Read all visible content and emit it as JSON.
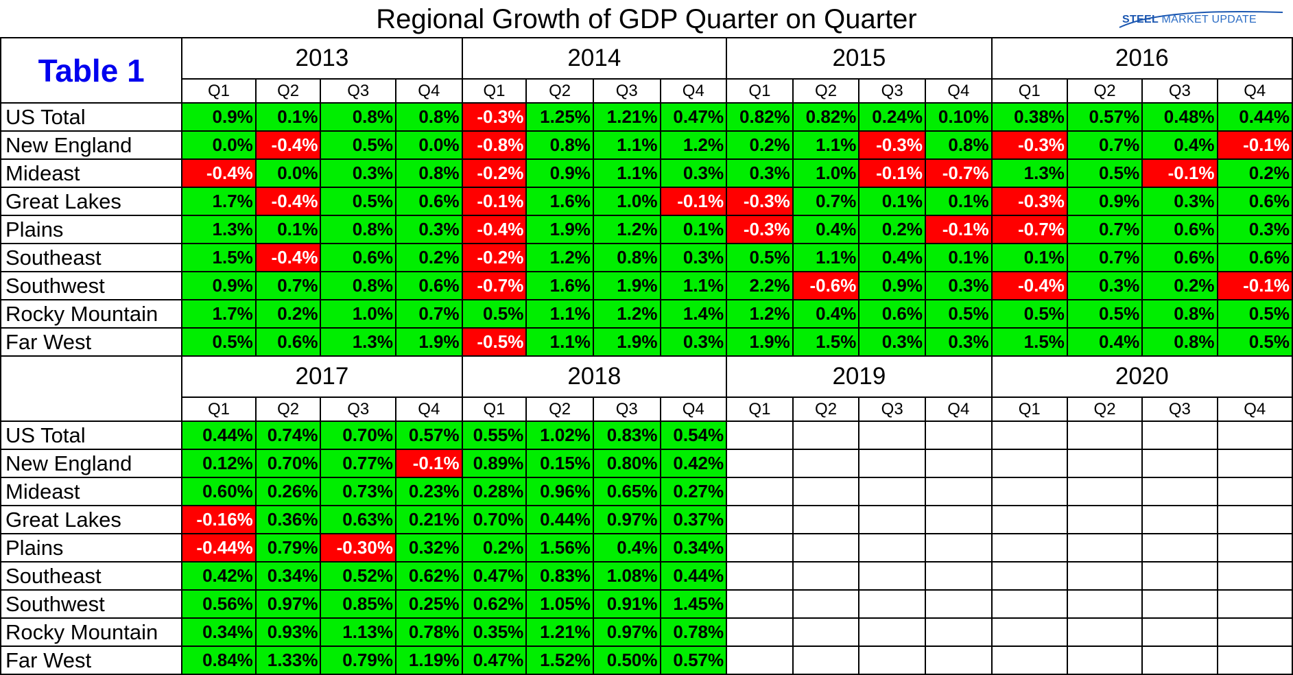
{
  "title": "Regional Growth of GDP Quarter on Quarter",
  "logo": {
    "word1": "STEEL",
    "word2": "MARKET UPDATE"
  },
  "table_label": "Table 1",
  "colors": {
    "positive": "#00ee00",
    "negative": "#ff0000",
    "table_label": "#0000ee",
    "logo": "#1a56b0"
  },
  "regions": [
    "US Total",
    "New England",
    "Mideast",
    "Great Lakes",
    "Plains",
    "Southeast",
    "Southwest",
    "Rocky Mountain",
    "Far West"
  ],
  "quarters": [
    "Q1",
    "Q2",
    "Q3",
    "Q4"
  ],
  "chart_data": {
    "type": "table",
    "title": "Regional Growth of GDP Quarter on Quarter",
    "blocks": [
      {
        "years": [
          "2013",
          "2014",
          "2015",
          "2016"
        ],
        "rows": [
          [
            "0.9%",
            "0.1%",
            "0.8%",
            "0.8%",
            "-0.3%",
            "1.25%",
            "1.21%",
            "0.47%",
            "0.82%",
            "0.82%",
            "0.24%",
            "0.10%",
            "0.38%",
            "0.57%",
            "0.48%",
            "0.44%"
          ],
          [
            "0.0%",
            "-0.4%",
            "0.5%",
            "0.0%",
            "-0.8%",
            "0.8%",
            "1.1%",
            "1.2%",
            "0.2%",
            "1.1%",
            "-0.3%",
            "0.8%",
            "-0.3%",
            "0.7%",
            "0.4%",
            "-0.1%"
          ],
          [
            "-0.4%",
            "0.0%",
            "0.3%",
            "0.8%",
            "-0.2%",
            "0.9%",
            "1.1%",
            "0.3%",
            "0.3%",
            "1.0%",
            "-0.1%",
            "-0.7%",
            "1.3%",
            "0.5%",
            "-0.1%",
            "0.2%"
          ],
          [
            "1.7%",
            "-0.4%",
            "0.5%",
            "0.6%",
            "-0.1%",
            "1.6%",
            "1.0%",
            "-0.1%",
            "-0.3%",
            "0.7%",
            "0.1%",
            "0.1%",
            "-0.3%",
            "0.9%",
            "0.3%",
            "0.6%"
          ],
          [
            "1.3%",
            "0.1%",
            "0.8%",
            "0.3%",
            "-0.4%",
            "1.9%",
            "1.2%",
            "0.1%",
            "-0.3%",
            "0.4%",
            "0.2%",
            "-0.1%",
            "-0.7%",
            "0.7%",
            "0.6%",
            "0.3%"
          ],
          [
            "1.5%",
            "-0.4%",
            "0.6%",
            "0.2%",
            "-0.2%",
            "1.2%",
            "0.8%",
            "0.3%",
            "0.5%",
            "1.1%",
            "0.4%",
            "0.1%",
            "0.1%",
            "0.7%",
            "0.6%",
            "0.6%"
          ],
          [
            "0.9%",
            "0.7%",
            "0.8%",
            "0.6%",
            "-0.7%",
            "1.6%",
            "1.9%",
            "1.1%",
            "2.2%",
            "-0.6%",
            "0.9%",
            "0.3%",
            "-0.4%",
            "0.3%",
            "0.2%",
            "-0.1%"
          ],
          [
            "1.7%",
            "0.2%",
            "1.0%",
            "0.7%",
            "0.5%",
            "1.1%",
            "1.2%",
            "1.4%",
            "1.2%",
            "0.4%",
            "0.6%",
            "0.5%",
            "0.5%",
            "0.5%",
            "0.8%",
            "0.5%"
          ],
          [
            "0.5%",
            "0.6%",
            "1.3%",
            "1.9%",
            "-0.5%",
            "1.1%",
            "1.9%",
            "0.3%",
            "1.9%",
            "1.5%",
            "0.3%",
            "0.3%",
            "1.5%",
            "0.4%",
            "0.8%",
            "0.5%"
          ]
        ]
      },
      {
        "years": [
          "2017",
          "2018",
          "2019",
          "2020"
        ],
        "rows": [
          [
            "0.44%",
            "0.74%",
            "0.70%",
            "0.57%",
            "0.55%",
            "1.02%",
            "0.83%",
            "0.54%"
          ],
          [
            "0.12%",
            "0.70%",
            "0.77%",
            "-0.1%",
            "0.89%",
            "0.15%",
            "0.80%",
            "0.42%"
          ],
          [
            "0.60%",
            "0.26%",
            "0.73%",
            "0.23%",
            "0.28%",
            "0.96%",
            "0.65%",
            "0.27%"
          ],
          [
            "-0.16%",
            "0.36%",
            "0.63%",
            "0.21%",
            "0.70%",
            "0.44%",
            "0.97%",
            "0.37%"
          ],
          [
            "-0.44%",
            "0.79%",
            "-0.30%",
            "0.32%",
            "0.2%",
            "1.56%",
            "0.4%",
            "0.34%"
          ],
          [
            "0.42%",
            "0.34%",
            "0.52%",
            "0.62%",
            "0.47%",
            "0.83%",
            "1.08%",
            "0.44%"
          ],
          [
            "0.56%",
            "0.97%",
            "0.85%",
            "0.25%",
            "0.62%",
            "1.05%",
            "0.91%",
            "1.45%"
          ],
          [
            "0.34%",
            "0.93%",
            "1.13%",
            "0.78%",
            "0.35%",
            "1.21%",
            "0.97%",
            "0.78%"
          ],
          [
            "0.84%",
            "1.33%",
            "0.79%",
            "1.19%",
            "0.47%",
            "1.52%",
            "0.50%",
            "0.57%"
          ]
        ]
      }
    ]
  }
}
